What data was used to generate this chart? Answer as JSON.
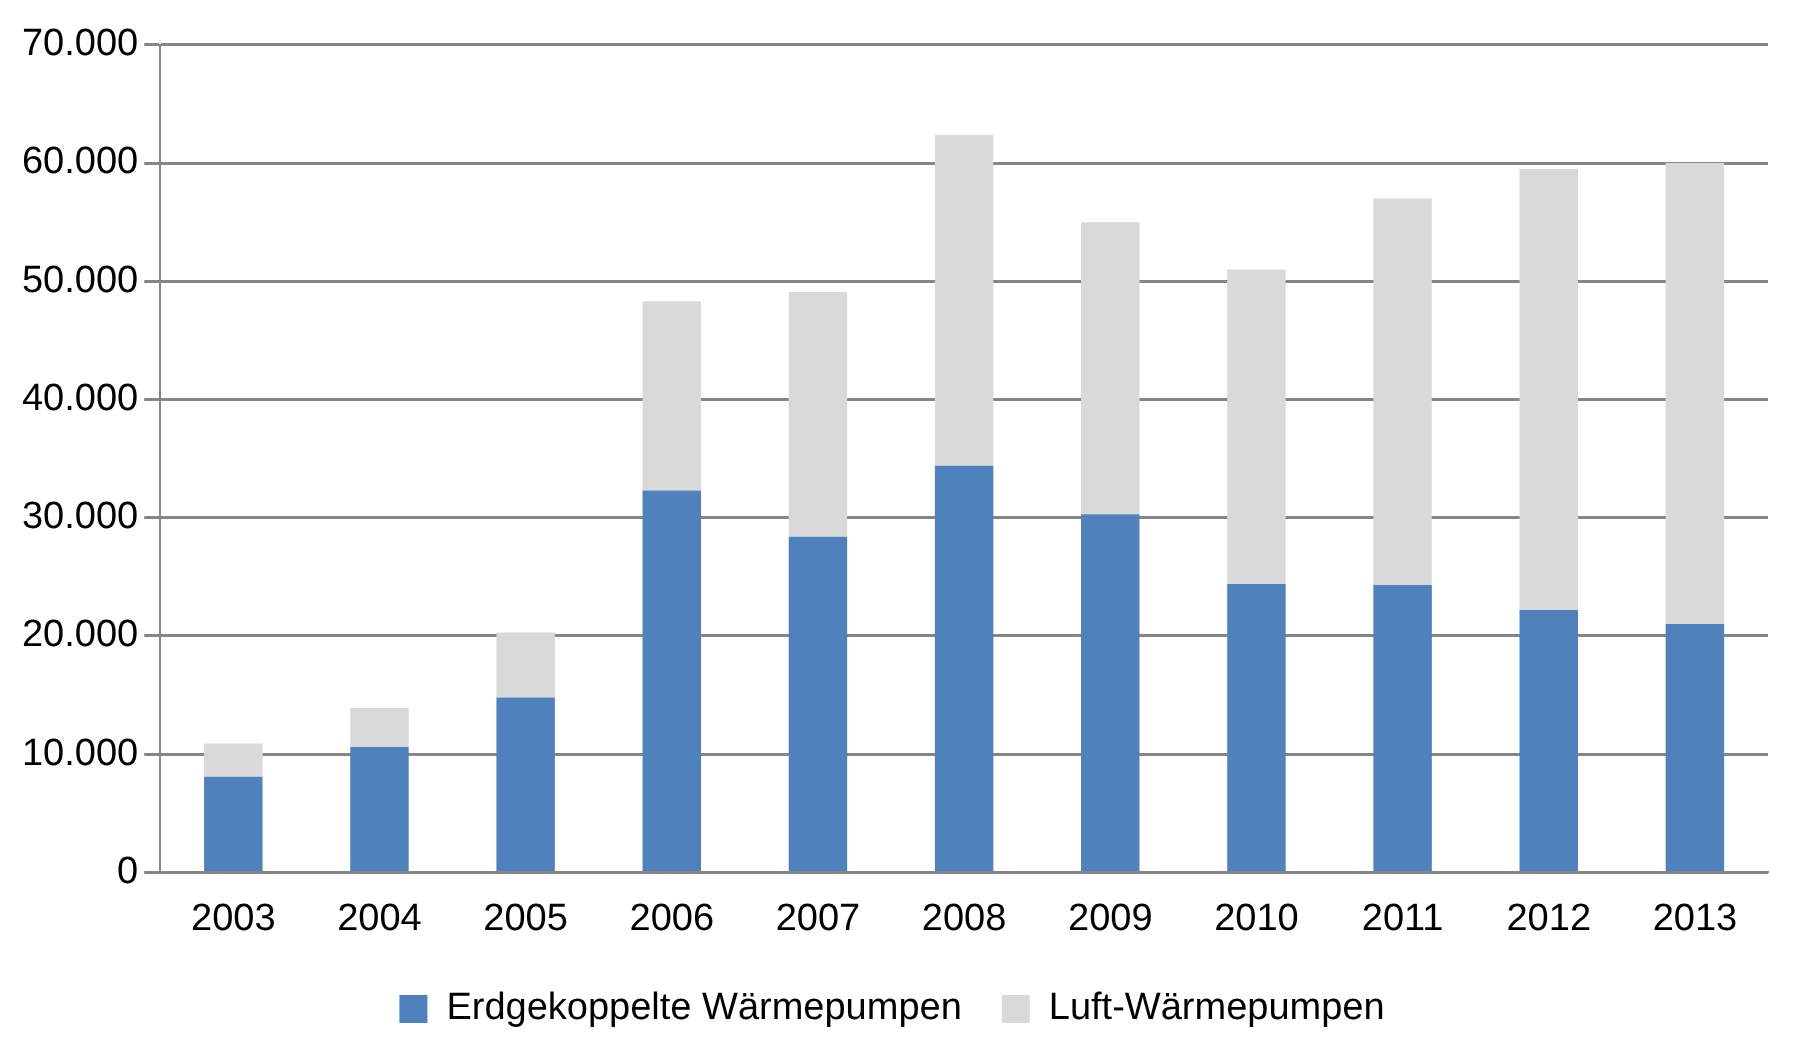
{
  "chart_data": {
    "type": "bar",
    "stacked": true,
    "categories": [
      "2003",
      "2004",
      "2005",
      "2006",
      "2007",
      "2008",
      "2009",
      "2010",
      "2011",
      "2012",
      "2013"
    ],
    "series": [
      {
        "name": "Erdgekoppelte Wärmepumpen",
        "color": "#4f81bd",
        "values": [
          8100,
          10600,
          14800,
          32300,
          28400,
          34400,
          30300,
          24400,
          24300,
          22200,
          21000
        ]
      },
      {
        "name": "Luft-Wärmepumpen",
        "color": "#d9d9d9",
        "values": [
          2800,
          3300,
          5500,
          16000,
          20700,
          28000,
          24700,
          26600,
          32700,
          37300,
          39000
        ]
      }
    ],
    "ylim": [
      0,
      70000
    ],
    "yticks": [
      {
        "value": 0,
        "label": "0"
      },
      {
        "value": 10000,
        "label": "10.000"
      },
      {
        "value": 20000,
        "label": "20.000"
      },
      {
        "value": 30000,
        "label": "30.000"
      },
      {
        "value": 40000,
        "label": "40.000"
      },
      {
        "value": 50000,
        "label": "50.000"
      },
      {
        "value": 60000,
        "label": "60.000"
      },
      {
        "value": 70000,
        "label": "70.000"
      }
    ],
    "grid": "y",
    "legend": "bottom"
  }
}
